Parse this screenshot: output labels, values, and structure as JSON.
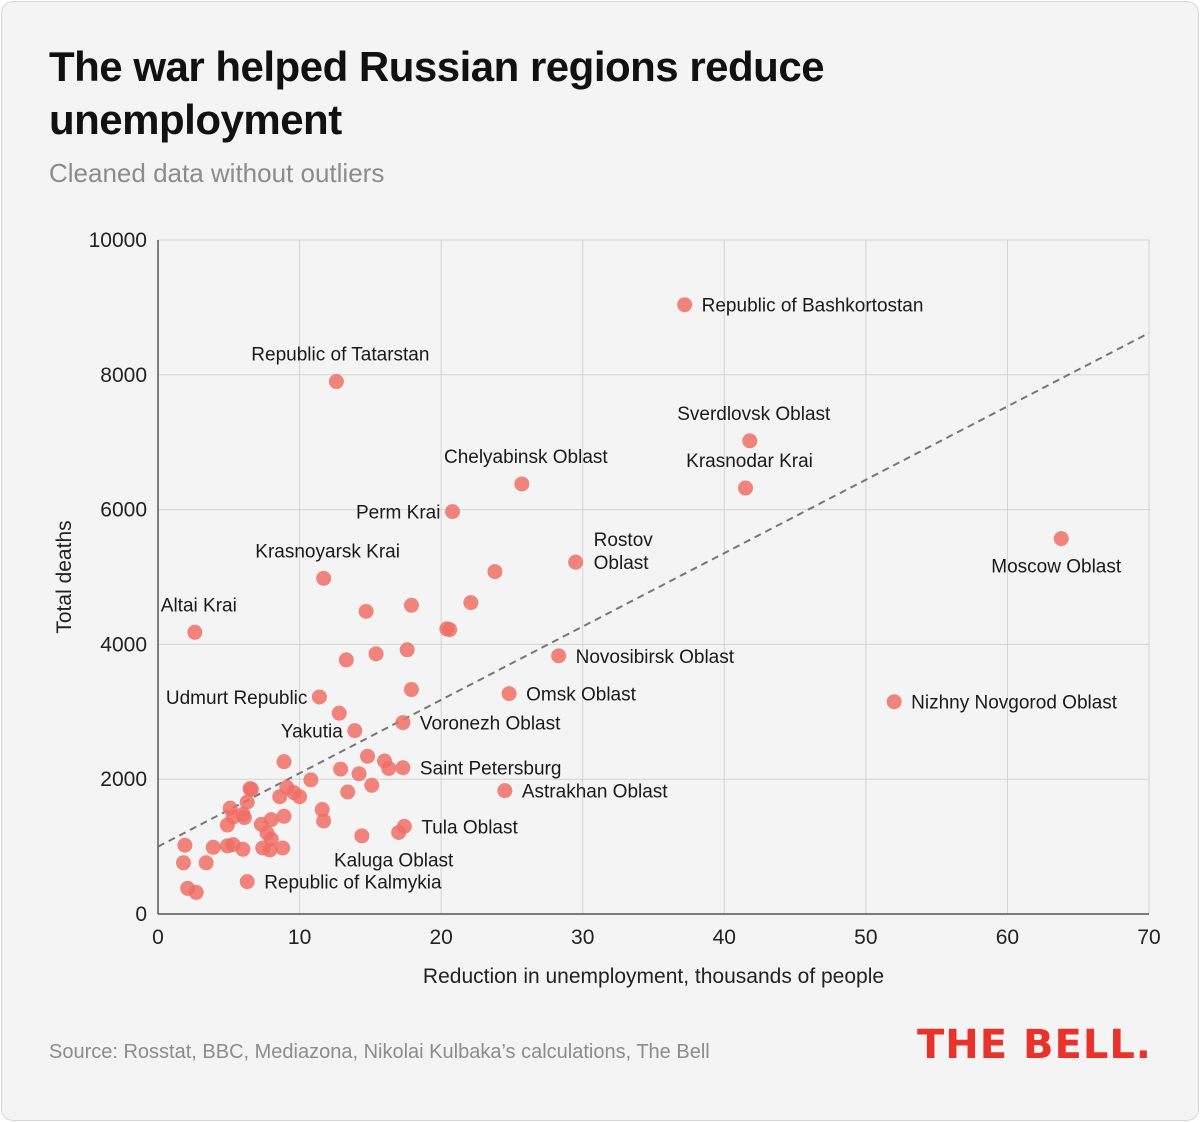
{
  "header": {
    "title": "The war helped Russian regions reduce unemployment",
    "subtitle": "Cleaned data without outliers"
  },
  "footer": {
    "source": "Source: Rosstat, BBC, Mediazona, Nikolai Kulbaka’s calculations, The Bell",
    "logo": "THE BELL."
  },
  "colors": {
    "point": "#ef6f66",
    "trend": "#777777",
    "grid": "#d4d4d4",
    "logo": "#e8322b"
  },
  "chart_data": {
    "type": "scatter",
    "title": "The war helped Russian regions reduce unemployment",
    "subtitle": "Cleaned data without outliers",
    "xlabel": "Reduction in unemployment, thousands of people",
    "ylabel": "Total deaths",
    "xlim": [
      0,
      70
    ],
    "ylim": [
      0,
      10000
    ],
    "xticks": [
      0,
      10,
      20,
      30,
      40,
      50,
      60,
      70
    ],
    "yticks": [
      0,
      2000,
      4000,
      6000,
      8000,
      10000
    ],
    "grid": true,
    "trendline": {
      "style": "dashed",
      "from": [
        0,
        1000
      ],
      "to": [
        70,
        8620
      ]
    },
    "points": [
      {
        "x": 37.2,
        "y": 9040,
        "label": "Republic of Bashkortostan",
        "label_side": "right"
      },
      {
        "x": 12.6,
        "y": 7900,
        "label": "Republic of Tatarstan",
        "label_side": "above"
      },
      {
        "x": 41.8,
        "y": 7020,
        "label": "Sverdlovsk Oblast",
        "label_side": "above"
      },
      {
        "x": 25.7,
        "y": 6380,
        "label": "Chelyabinsk Oblast",
        "label_side": "above"
      },
      {
        "x": 41.5,
        "y": 6320,
        "label": "Krasnodar Krai",
        "label_side": "above"
      },
      {
        "x": 20.8,
        "y": 5970,
        "label": "Perm Krai",
        "label_side": "left"
      },
      {
        "x": 63.8,
        "y": 5570,
        "label": "Moscow Oblast",
        "label_side": "below"
      },
      {
        "x": 29.5,
        "y": 5220,
        "label": "Rostov Oblast",
        "label_side": "right-wrapped"
      },
      {
        "x": 11.7,
        "y": 4980,
        "label": "Krasnoyarsk Krai",
        "label_side": "above"
      },
      {
        "x": 2.6,
        "y": 4180,
        "label": "Altai Krai",
        "label_side": "above"
      },
      {
        "x": 28.3,
        "y": 3830,
        "label": "Novosibirsk Oblast",
        "label_side": "right"
      },
      {
        "x": 24.8,
        "y": 3270,
        "label": "Omsk Oblast",
        "label_side": "right"
      },
      {
        "x": 11.4,
        "y": 3220,
        "label": "Udmurt Republic",
        "label_side": "left"
      },
      {
        "x": 52.0,
        "y": 3150,
        "label": "Nizhny Novgorod Oblast",
        "label_side": "right"
      },
      {
        "x": 17.3,
        "y": 2840,
        "label": "Voronezh Oblast",
        "label_side": "right"
      },
      {
        "x": 13.9,
        "y": 2720,
        "label": "Yakutia",
        "label_side": "left"
      },
      {
        "x": 17.3,
        "y": 2170,
        "label": "Saint Petersburg",
        "label_side": "right"
      },
      {
        "x": 24.5,
        "y": 1830,
        "label": "Astrakhan Oblast",
        "label_side": "right"
      },
      {
        "x": 17.4,
        "y": 1300,
        "label": "Tula Oblast",
        "label_side": "right"
      },
      {
        "x": 17.0,
        "y": 1210,
        "label": "Kaluga Oblast",
        "label_side": "below"
      },
      {
        "x": 6.3,
        "y": 480,
        "label": "Republic of Kalmykia",
        "label_side": "right"
      },
      {
        "x": 23.8,
        "y": 5080
      },
      {
        "x": 22.1,
        "y": 4620
      },
      {
        "x": 17.9,
        "y": 4580
      },
      {
        "x": 14.7,
        "y": 4490
      },
      {
        "x": 20.4,
        "y": 4230
      },
      {
        "x": 20.6,
        "y": 4220
      },
      {
        "x": 17.6,
        "y": 3920
      },
      {
        "x": 15.4,
        "y": 3860
      },
      {
        "x": 13.3,
        "y": 3770
      },
      {
        "x": 17.9,
        "y": 3330
      },
      {
        "x": 12.8,
        "y": 2980
      },
      {
        "x": 8.9,
        "y": 2260
      },
      {
        "x": 14.8,
        "y": 2340
      },
      {
        "x": 16.0,
        "y": 2270
      },
      {
        "x": 12.9,
        "y": 2150
      },
      {
        "x": 16.3,
        "y": 2160
      },
      {
        "x": 14.2,
        "y": 2080
      },
      {
        "x": 10.8,
        "y": 1990
      },
      {
        "x": 15.1,
        "y": 1910
      },
      {
        "x": 13.4,
        "y": 1810
      },
      {
        "x": 9.1,
        "y": 1880
      },
      {
        "x": 9.6,
        "y": 1800
      },
      {
        "x": 10.0,
        "y": 1740
      },
      {
        "x": 8.6,
        "y": 1740
      },
      {
        "x": 6.5,
        "y": 1860
      },
      {
        "x": 6.6,
        "y": 1850
      },
      {
        "x": 6.3,
        "y": 1660
      },
      {
        "x": 5.1,
        "y": 1570
      },
      {
        "x": 11.6,
        "y": 1550
      },
      {
        "x": 6.0,
        "y": 1480
      },
      {
        "x": 6.1,
        "y": 1430
      },
      {
        "x": 5.3,
        "y": 1440
      },
      {
        "x": 8.9,
        "y": 1450
      },
      {
        "x": 8.0,
        "y": 1400
      },
      {
        "x": 11.7,
        "y": 1380
      },
      {
        "x": 4.9,
        "y": 1320
      },
      {
        "x": 7.3,
        "y": 1330
      },
      {
        "x": 7.7,
        "y": 1200
      },
      {
        "x": 8.0,
        "y": 1110
      },
      {
        "x": 14.4,
        "y": 1160
      },
      {
        "x": 1.9,
        "y": 1020
      },
      {
        "x": 3.9,
        "y": 990
      },
      {
        "x": 4.9,
        "y": 1010
      },
      {
        "x": 5.3,
        "y": 1030
      },
      {
        "x": 6.0,
        "y": 960
      },
      {
        "x": 7.4,
        "y": 980
      },
      {
        "x": 7.9,
        "y": 950
      },
      {
        "x": 8.8,
        "y": 980
      },
      {
        "x": 1.8,
        "y": 760
      },
      {
        "x": 3.4,
        "y": 760
      },
      {
        "x": 2.1,
        "y": 380
      },
      {
        "x": 2.7,
        "y": 320
      }
    ]
  }
}
